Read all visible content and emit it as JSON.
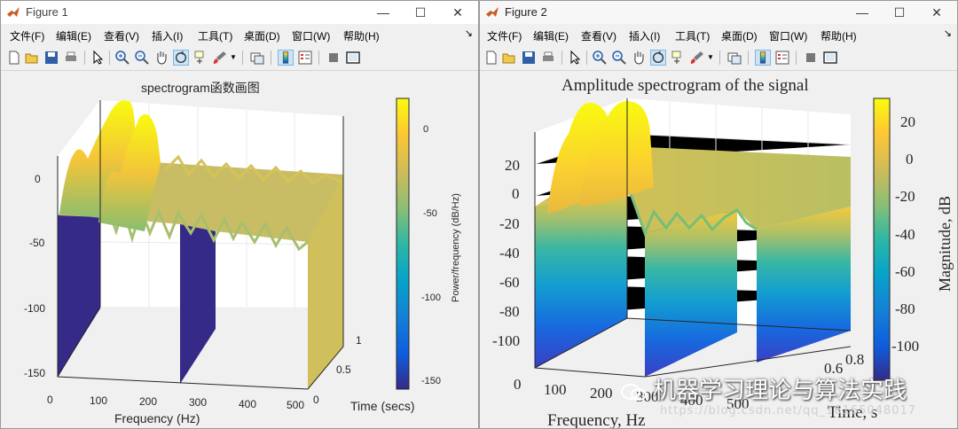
{
  "figure1": {
    "title": "Figure 1",
    "menu": [
      "文件(F)",
      "编辑(E)",
      "查看(V)",
      "插入(I)",
      "工具(T)",
      "桌面(D)",
      "窗口(W)",
      "帮助(H)"
    ],
    "plot_title": "spectrogram函数画图",
    "xlabel": "Frequency (Hz)",
    "ylabel": "Time (secs)",
    "colorbar_label": "Power/frequency (dB/Hz)",
    "z_ticks": [
      "0",
      "-50",
      "-100",
      "-150"
    ],
    "x_ticks": [
      "0",
      "100",
      "200",
      "300",
      "400",
      "500"
    ],
    "y_ticks": [
      "0",
      "0.5",
      "1"
    ],
    "cbar_ticks": [
      "0",
      "-50",
      "-100",
      "-150"
    ]
  },
  "figure2": {
    "title": "Figure 2",
    "menu": [
      "文件(F)",
      "编辑(E)",
      "查看(V)",
      "插入(I)",
      "工具(T)",
      "桌面(D)",
      "窗口(W)",
      "帮助(H)"
    ],
    "plot_title": "Amplitude spectrogram of the signal",
    "xlabel": "Frequency, Hz",
    "ylabel": "Time, s",
    "colorbar_label": "Magnitude, dB",
    "z_ticks": [
      "20",
      "0",
      "-20",
      "-40",
      "-60",
      "-80",
      "-100"
    ],
    "x_ticks": [
      "0",
      "100",
      "200",
      "300",
      "400",
      "500"
    ],
    "y_ticks": [
      "0.6",
      "0.8"
    ],
    "cbar_ticks": [
      "20",
      "0",
      "-20",
      "-40",
      "-60",
      "-80",
      "-100"
    ]
  },
  "watermark": {
    "text": "机器学习理论与算法实践",
    "url": "https://blog.csdn.net/qq_16165048017"
  },
  "colors": {
    "accent": "#0072bd",
    "parula_low": "#352a87",
    "parula_high": "#f9fb0e"
  },
  "icons": [
    "matlab-logo",
    "minimize-icon",
    "maximize-icon",
    "close-icon",
    "new-file-icon",
    "open-folder-icon",
    "save-icon",
    "print-icon",
    "pointer-icon",
    "zoom-in-icon",
    "zoom-out-icon",
    "pan-hand-icon",
    "rotate-3d-icon",
    "data-cursor-icon",
    "brush-icon",
    "link-icon",
    "colorbar-icon",
    "legend-icon",
    "hide-tools-icon",
    "dock-icon"
  ]
}
